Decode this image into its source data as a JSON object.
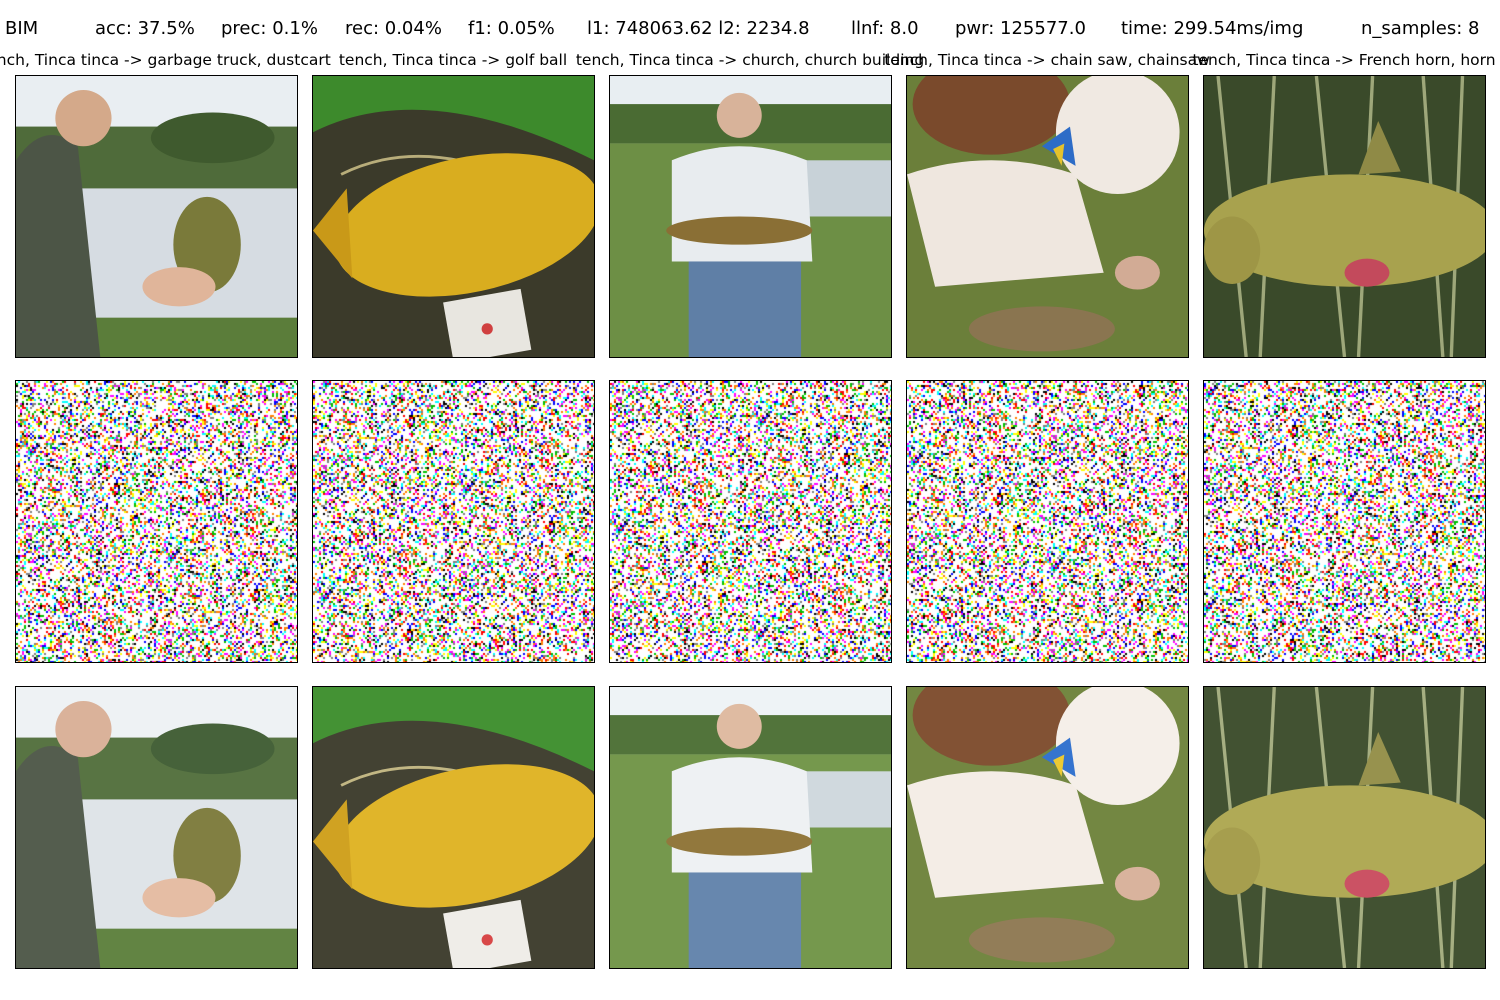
{
  "header": {
    "method": "BIM",
    "acc": "acc: 37.5%",
    "prec": "prec: 0.1%",
    "rec": "rec: 0.04%",
    "f1": "f1: 0.05%",
    "norms": "l1: 748063.62 l2: 2234.8",
    "linf": "llnf: 8.0",
    "pwr": "pwr: 125577.0",
    "time": "time: 299.54ms/img",
    "n_samples": "n_samples: 8"
  },
  "columns": [
    {
      "title": "tench, Tinca tinca -> garbage truck, dustcart",
      "scene": "man-lake"
    },
    {
      "title": "tench, Tinca tinca -> golf ball",
      "scene": "fish-net"
    },
    {
      "title": "tench, Tinca tinca -> church, church building",
      "scene": "man-grass"
    },
    {
      "title": "tench, Tinca tinca -> chain saw, chainsaw",
      "scene": "boy-grass"
    },
    {
      "title": "tench, Tinca tinca -> French horn, horn",
      "scene": "fish-reeds"
    }
  ],
  "rows": [
    "original",
    "perturbation",
    "adversarial"
  ]
}
